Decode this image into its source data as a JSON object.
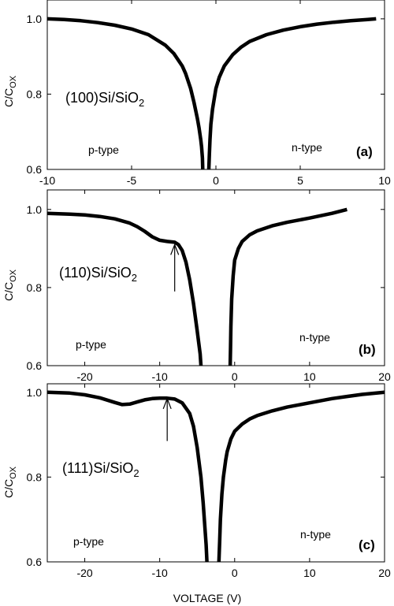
{
  "figure": {
    "xlabel": "VOLTAGE (V)"
  },
  "chart_data": [
    {
      "type": "line",
      "panel": "(a)",
      "sample": "(100)Si/SiO",
      "sample_sub": "2",
      "ylabel": "C/C",
      "ylabel_sub": "OX",
      "xlim": [
        -10,
        10
      ],
      "ylim": [
        0.6,
        1.05
      ],
      "xticks": [
        -10,
        -5,
        0,
        5,
        10
      ],
      "yticks": [
        0.6,
        0.8,
        1.0
      ],
      "xtick_labels": [
        "-10",
        "-5",
        "0",
        "5",
        "10"
      ],
      "ytick_labels": [
        "0.6",
        "0.8",
        "1.0"
      ],
      "grid": false,
      "annotations": [
        {
          "text": "p-type"
        },
        {
          "text": "n-type"
        }
      ],
      "series": [
        {
          "x": [
            -10,
            -9,
            -8,
            -7,
            -6,
            -5,
            -4,
            -3,
            -2.5,
            -2,
            -1.8,
            -1.5,
            -1.3,
            -1.1,
            -1.0,
            -0.9,
            -0.85,
            -0.8,
            -0.78
          ],
          "y": [
            1.0,
            0.998,
            0.995,
            0.99,
            0.983,
            0.973,
            0.958,
            0.93,
            0.908,
            0.875,
            0.855,
            0.815,
            0.778,
            0.735,
            0.71,
            0.68,
            0.66,
            0.63,
            0.6
          ]
        },
        {
          "x": [
            -0.42,
            -0.39,
            -0.35,
            -0.3,
            -0.2,
            0,
            0.2,
            0.5,
            1,
            1.5,
            2,
            3,
            4,
            5,
            6,
            7,
            8,
            9,
            9.5
          ],
          "y": [
            0.6,
            0.64,
            0.68,
            0.72,
            0.76,
            0.815,
            0.845,
            0.875,
            0.905,
            0.925,
            0.94,
            0.958,
            0.97,
            0.979,
            0.986,
            0.991,
            0.995,
            0.998,
            1.0
          ]
        }
      ]
    },
    {
      "type": "line",
      "panel": "(b)",
      "sample": "(110)Si/SiO",
      "sample_sub": "2",
      "ylabel": "C/C",
      "ylabel_sub": "OX",
      "xlim": [
        -25,
        20
      ],
      "ylim": [
        0.6,
        1.05
      ],
      "xticks": [
        -20,
        -10,
        0,
        10,
        20
      ],
      "yticks": [
        0.6,
        0.8,
        1.0
      ],
      "xtick_labels": [
        "-20",
        "-10",
        "0",
        "10",
        "20"
      ],
      "ytick_labels": [
        "0.6",
        "0.8",
        "1.0"
      ],
      "grid": false,
      "annotations": [
        {
          "text": "p-type"
        },
        {
          "text": "n-type"
        }
      ],
      "arrow": {
        "x": -8,
        "y_from": 0.79,
        "y_to": 0.91
      },
      "series": [
        {
          "x": [
            -25,
            -22,
            -20,
            -18,
            -16,
            -14,
            -13,
            -12,
            -11,
            -10,
            -9,
            -8,
            -7.5,
            -7,
            -6.5,
            -6,
            -5.5,
            -5,
            -4.8,
            -4.6,
            -4.5
          ],
          "y": [
            0.99,
            0.988,
            0.986,
            0.982,
            0.976,
            0.965,
            0.956,
            0.944,
            0.93,
            0.921,
            0.918,
            0.916,
            0.91,
            0.895,
            0.865,
            0.82,
            0.76,
            0.69,
            0.66,
            0.63,
            0.6
          ]
        },
        {
          "x": [
            -0.6,
            -0.55,
            -0.5,
            -0.4,
            -0.2,
            0,
            0.5,
            1,
            2,
            3,
            5,
            7,
            10,
            13,
            15
          ],
          "y": [
            0.6,
            0.64,
            0.7,
            0.77,
            0.83,
            0.87,
            0.9,
            0.918,
            0.935,
            0.945,
            0.958,
            0.967,
            0.978,
            0.99,
            1.0
          ]
        }
      ]
    },
    {
      "type": "line",
      "panel": "(c)",
      "sample": "(111)Si/SiO",
      "sample_sub": "2",
      "ylabel": "C/C",
      "ylabel_sub": "OX",
      "xlim": [
        -25,
        20
      ],
      "ylim": [
        0.6,
        1.02
      ],
      "xticks": [
        -20,
        -10,
        0,
        10,
        20
      ],
      "yticks": [
        0.6,
        0.8,
        1.0
      ],
      "xtick_labels": [
        "-20",
        "-10",
        "0",
        "10",
        "20"
      ],
      "ytick_labels": [
        "0.6",
        "0.8",
        "1.0"
      ],
      "grid": false,
      "annotations": [
        {
          "text": "p-type"
        },
        {
          "text": "n-type"
        }
      ],
      "arrow": {
        "x": -9,
        "y_from": 0.885,
        "y_to": 0.985
      },
      "series": [
        {
          "x": [
            -25,
            -22,
            -20,
            -18,
            -16,
            -15,
            -14,
            -13,
            -12,
            -11,
            -10,
            -9,
            -8,
            -7,
            -6,
            -5.5,
            -5,
            -4.5,
            -4.2,
            -4,
            -3.8,
            -3.7
          ],
          "y": [
            1.0,
            0.998,
            0.994,
            0.987,
            0.976,
            0.971,
            0.972,
            0.977,
            0.982,
            0.985,
            0.986,
            0.986,
            0.984,
            0.975,
            0.95,
            0.92,
            0.87,
            0.8,
            0.74,
            0.69,
            0.64,
            0.6
          ]
        },
        {
          "x": [
            -2.1,
            -2,
            -1.9,
            -1.7,
            -1.5,
            -1.2,
            -1,
            -0.5,
            0,
            1,
            2,
            3,
            5,
            7,
            10,
            13,
            15,
            17,
            20
          ],
          "y": [
            0.6,
            0.65,
            0.7,
            0.76,
            0.8,
            0.84,
            0.86,
            0.89,
            0.908,
            0.925,
            0.937,
            0.945,
            0.956,
            0.965,
            0.975,
            0.985,
            0.99,
            0.995,
            1.0
          ]
        }
      ]
    }
  ]
}
